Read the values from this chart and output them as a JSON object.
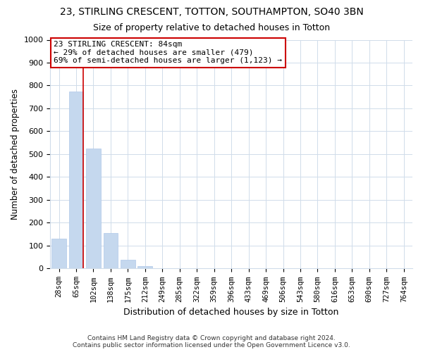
{
  "title": "23, STIRLING CRESCENT, TOTTON, SOUTHAMPTON, SO40 3BN",
  "subtitle": "Size of property relative to detached houses in Totton",
  "xlabel": "Distribution of detached houses by size in Totton",
  "ylabel": "Number of detached properties",
  "bar_labels": [
    "28sqm",
    "65sqm",
    "102sqm",
    "138sqm",
    "175sqm",
    "212sqm",
    "249sqm",
    "285sqm",
    "322sqm",
    "359sqm",
    "396sqm",
    "433sqm",
    "469sqm",
    "506sqm",
    "543sqm",
    "580sqm",
    "616sqm",
    "653sqm",
    "690sqm",
    "727sqm",
    "764sqm"
  ],
  "bar_values": [
    130,
    775,
    525,
    155,
    38,
    10,
    0,
    0,
    0,
    0,
    0,
    0,
    0,
    0,
    0,
    0,
    0,
    0,
    0,
    0,
    0
  ],
  "bar_color": "#c5d8ee",
  "bar_edge_color": "#b0c8e8",
  "highlight_line_color": "#cc0000",
  "ylim": [
    0,
    1000
  ],
  "yticks": [
    0,
    100,
    200,
    300,
    400,
    500,
    600,
    700,
    800,
    900,
    1000
  ],
  "annotation_line1": "23 STIRLING CRESCENT: 84sqm",
  "annotation_line2": "← 29% of detached houses are smaller (479)",
  "annotation_line3": "69% of semi-detached houses are larger (1,123) →",
  "annotation_box_color": "#ffffff",
  "annotation_box_edge": "#cc0000",
  "footer_line1": "Contains HM Land Registry data © Crown copyright and database right 2024.",
  "footer_line2": "Contains public sector information licensed under the Open Government Licence v3.0.",
  "bg_color": "#ffffff",
  "plot_bg_color": "#ffffff",
  "grid_color": "#d0dcea",
  "title_fontsize": 10,
  "subtitle_fontsize": 9
}
